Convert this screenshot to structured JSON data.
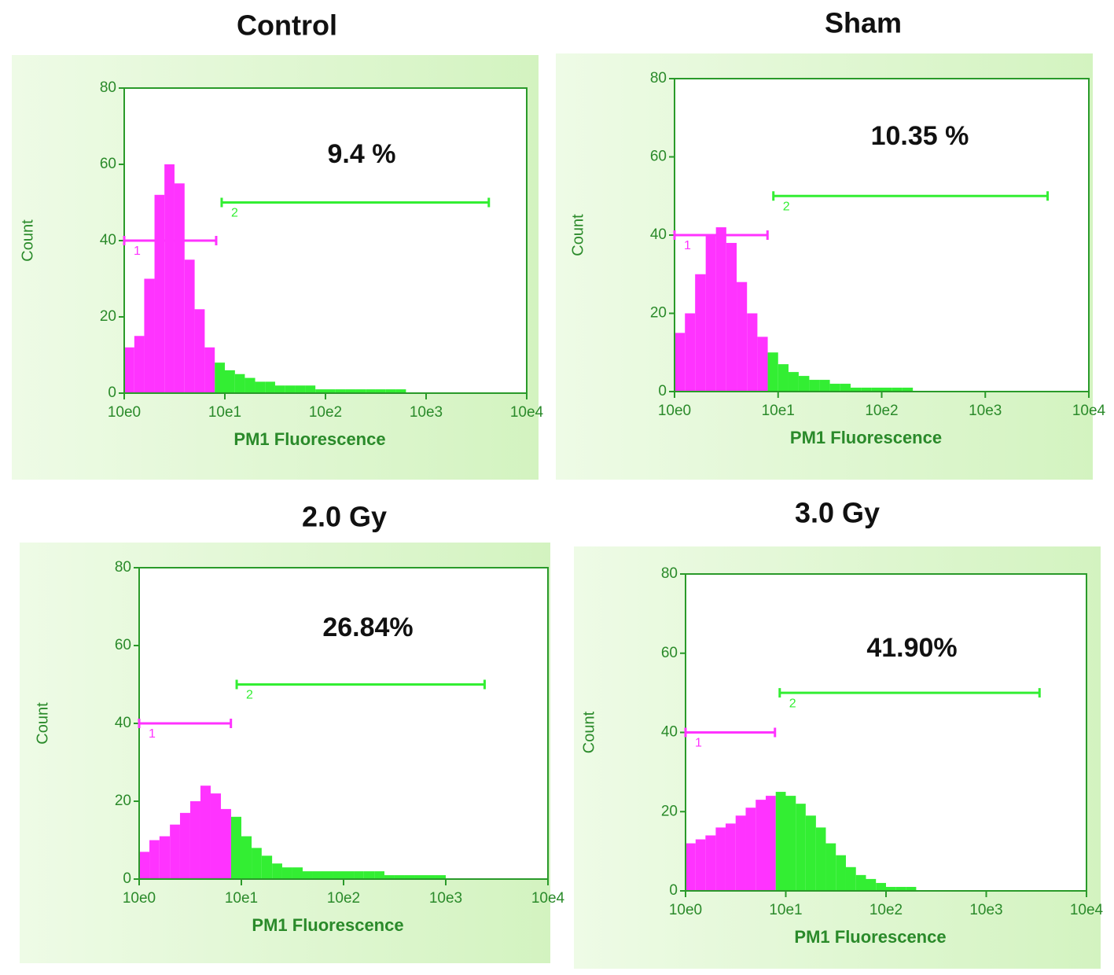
{
  "chart_data": [
    {
      "type": "histogram",
      "title": "Control",
      "annotation": "9.4 %",
      "xlabel": "PM1 Fluorescence",
      "ylabel": "Count",
      "log_x": true,
      "xlim": [
        1,
        10000
      ],
      "xticks": [
        {
          "value": 1,
          "label": "10e0"
        },
        {
          "value": 10,
          "label": "10e1"
        },
        {
          "value": 100,
          "label": "10e2"
        },
        {
          "value": 1000,
          "label": "10e3"
        },
        {
          "value": 10000,
          "label": "10e4"
        }
      ],
      "ylim": [
        0,
        80
      ],
      "yticks": [
        0,
        20,
        40,
        60,
        80
      ],
      "bins": [
        1,
        1.26,
        1.58,
        2,
        2.51,
        3.16,
        3.98,
        5.01,
        6.31,
        7.94,
        10,
        12.6,
        15.8,
        20,
        25.1,
        31.6,
        39.8,
        50.1,
        63.1,
        79.4,
        100,
        126,
        158,
        200,
        251,
        316,
        398,
        501,
        631,
        794,
        1000,
        1259,
        1585,
        1995,
        2512,
        3162,
        3981,
        5012,
        6310,
        7943,
        10000
      ],
      "values": [
        12,
        15,
        30,
        52,
        60,
        55,
        35,
        22,
        12,
        8,
        6,
        5,
        4,
        3,
        3,
        2,
        2,
        2,
        2,
        1,
        1,
        1,
        1,
        1,
        1,
        1,
        1,
        1,
        0,
        0,
        0,
        0,
        0,
        0,
        0,
        0,
        0,
        0,
        0,
        0
      ],
      "gates": [
        {
          "label": "1",
          "range": [
            1,
            8.2
          ],
          "y": 40,
          "color": "#ff33ff"
        },
        {
          "label": "2",
          "range": [
            9.3,
            4200
          ],
          "y": 50,
          "color": "#33ee33"
        }
      ]
    },
    {
      "type": "histogram",
      "title": "Sham",
      "annotation": "10.35 %",
      "xlabel": "PM1 Fluorescence",
      "ylabel": "Count",
      "log_x": true,
      "xlim": [
        1,
        10000
      ],
      "xticks": [
        {
          "value": 1,
          "label": "10e0"
        },
        {
          "value": 10,
          "label": "10e1"
        },
        {
          "value": 100,
          "label": "10e2"
        },
        {
          "value": 1000,
          "label": "10e3"
        },
        {
          "value": 10000,
          "label": "10e4"
        }
      ],
      "ylim": [
        0,
        80
      ],
      "yticks": [
        0,
        20,
        40,
        60,
        80
      ],
      "bins": [
        1,
        1.26,
        1.58,
        2,
        2.51,
        3.16,
        3.98,
        5.01,
        6.31,
        7.94,
        10,
        12.6,
        15.8,
        20,
        25.1,
        31.6,
        39.8,
        50.1,
        63.1,
        79.4,
        100,
        126,
        158,
        200,
        251,
        316,
        398,
        501,
        631,
        794,
        1000,
        1259,
        1585,
        1995,
        2512,
        3162,
        3981,
        5012,
        6310,
        7943,
        10000
      ],
      "values": [
        15,
        20,
        30,
        40,
        42,
        38,
        28,
        20,
        14,
        10,
        7,
        5,
        4,
        3,
        3,
        2,
        2,
        1,
        1,
        1,
        1,
        1,
        1,
        0,
        0,
        0,
        0,
        0,
        0,
        0,
        0,
        0,
        0,
        0,
        0,
        0,
        0,
        0,
        0,
        0
      ],
      "gates": [
        {
          "label": "1",
          "range": [
            1,
            7.9
          ],
          "y": 40,
          "color": "#ff33ff"
        },
        {
          "label": "2",
          "range": [
            9,
            4000
          ],
          "y": 50,
          "color": "#33ee33"
        }
      ]
    },
    {
      "type": "histogram",
      "title": "2.0 Gy",
      "annotation": "26.84%",
      "xlabel": "PM1 Fluorescence",
      "ylabel": "Count",
      "log_x": true,
      "xlim": [
        1,
        10000
      ],
      "xticks": [
        {
          "value": 1,
          "label": "10e0"
        },
        {
          "value": 10,
          "label": "10e1"
        },
        {
          "value": 100,
          "label": "10e2"
        },
        {
          "value": 1000,
          "label": "10e3"
        },
        {
          "value": 10000,
          "label": "10e4"
        }
      ],
      "ylim": [
        0,
        80
      ],
      "yticks": [
        0,
        20,
        40,
        60,
        80
      ],
      "bins": [
        1,
        1.26,
        1.58,
        2,
        2.51,
        3.16,
        3.98,
        5.01,
        6.31,
        7.94,
        10,
        12.6,
        15.8,
        20,
        25.1,
        31.6,
        39.8,
        50.1,
        63.1,
        79.4,
        100,
        126,
        158,
        200,
        251,
        316,
        398,
        501,
        631,
        794,
        1000,
        1259,
        1585,
        1995,
        2512,
        3162,
        3981,
        5012,
        6310,
        7943,
        10000
      ],
      "values": [
        7,
        10,
        11,
        14,
        17,
        20,
        24,
        22,
        18,
        16,
        11,
        8,
        6,
        4,
        3,
        3,
        2,
        2,
        2,
        2,
        2,
        2,
        2,
        2,
        1,
        1,
        1,
        1,
        1,
        1,
        0,
        0,
        0,
        0,
        0,
        0,
        0,
        0,
        0,
        0
      ],
      "gates": [
        {
          "label": "1",
          "range": [
            1,
            7.9
          ],
          "y": 40,
          "color": "#ff33ff"
        },
        {
          "label": "2",
          "range": [
            9,
            2400
          ],
          "y": 50,
          "color": "#33ee33"
        }
      ]
    },
    {
      "type": "histogram",
      "title": "3.0 Gy",
      "annotation": "41.90%",
      "xlabel": "PM1 Fluorescence",
      "ylabel": "Count",
      "log_x": true,
      "xlim": [
        1,
        10000
      ],
      "xticks": [
        {
          "value": 1,
          "label": "10e0"
        },
        {
          "value": 10,
          "label": "10e1"
        },
        {
          "value": 100,
          "label": "10e2"
        },
        {
          "value": 1000,
          "label": "10e3"
        },
        {
          "value": 10000,
          "label": "10e4"
        }
      ],
      "ylim": [
        0,
        80
      ],
      "yticks": [
        0,
        20,
        40,
        60,
        80
      ],
      "bins": [
        1,
        1.26,
        1.58,
        2,
        2.51,
        3.16,
        3.98,
        5.01,
        6.31,
        7.94,
        10,
        12.6,
        15.8,
        20,
        25.1,
        31.6,
        39.8,
        50.1,
        63.1,
        79.4,
        100,
        126,
        158,
        200,
        251,
        316,
        398,
        501,
        631,
        794,
        1000,
        1259,
        1585,
        1995,
        2512,
        3162,
        3981,
        5012,
        6310,
        7943,
        10000
      ],
      "values": [
        12,
        13,
        14,
        16,
        17,
        19,
        21,
        23,
        24,
        25,
        24,
        22,
        19,
        16,
        12,
        9,
        6,
        4,
        3,
        2,
        1,
        1,
        1,
        0,
        0,
        0,
        0,
        0,
        0,
        0,
        0,
        0,
        0,
        0,
        0,
        0,
        0,
        0,
        0,
        0
      ],
      "gates": [
        {
          "label": "1",
          "range": [
            1,
            7.8
          ],
          "y": 40,
          "color": "#ff33ff"
        },
        {
          "label": "2",
          "range": [
            8.7,
            3400
          ],
          "y": 50,
          "color": "#33ee33"
        }
      ]
    }
  ]
}
